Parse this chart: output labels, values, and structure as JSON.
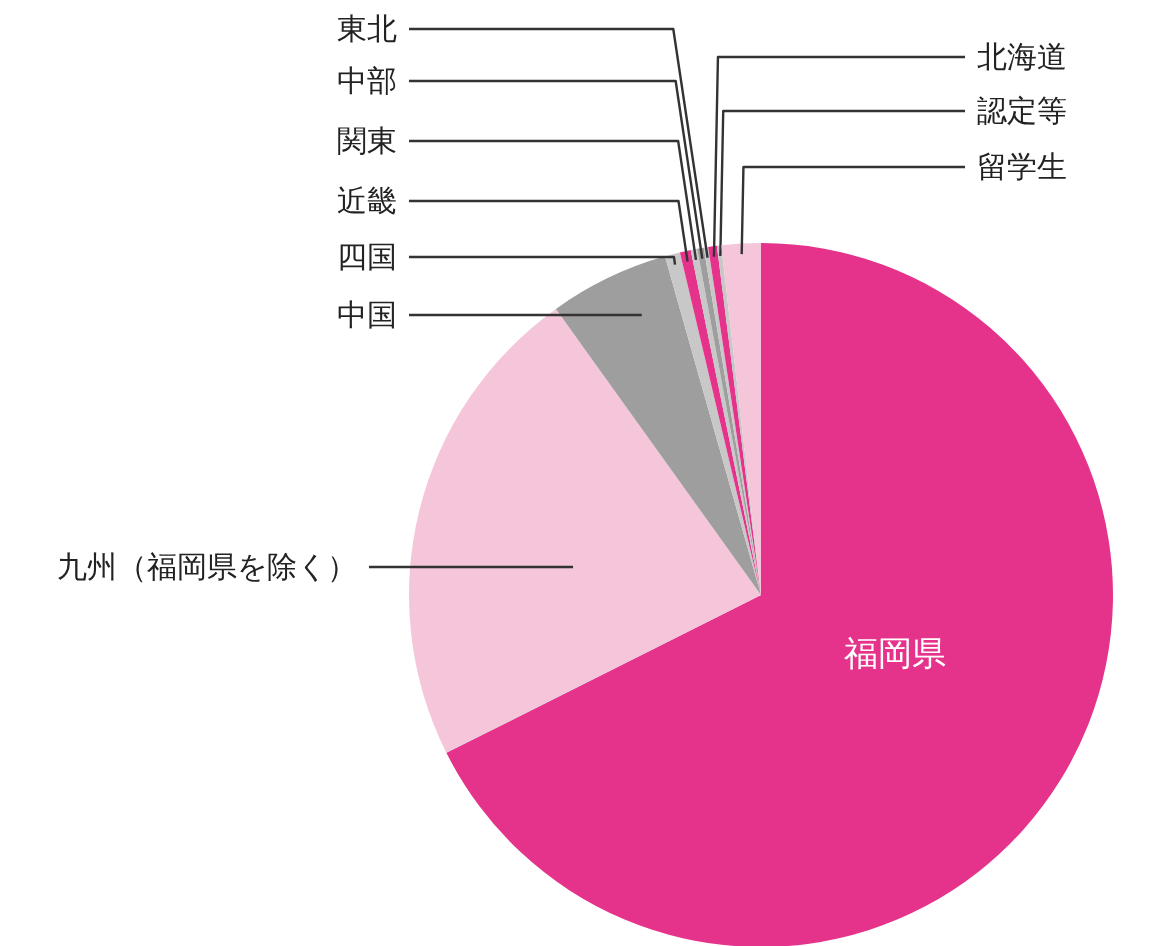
{
  "chart_data": {
    "type": "pie",
    "categories": [
      "福岡県",
      "九州（福岡県を除く）",
      "中国",
      "四国",
      "近畿",
      "関東",
      "中部",
      "東北",
      "北海道",
      "認定等",
      "留学生"
    ],
    "values": [
      67.6,
      22.5,
      5.5,
      0.7,
      0.5,
      0.3,
      0.3,
      0.2,
      0.4,
      0.2,
      1.8
    ],
    "colors": [
      "#e5338b",
      "#f5c6da",
      "#9e9e9e",
      "#c8c8c8",
      "#e5338b",
      "#c8c8c8",
      "#9e9e9e",
      "#c8c8c8",
      "#e5338b",
      "#c8c8c8",
      "#f5c6da"
    ]
  }
}
